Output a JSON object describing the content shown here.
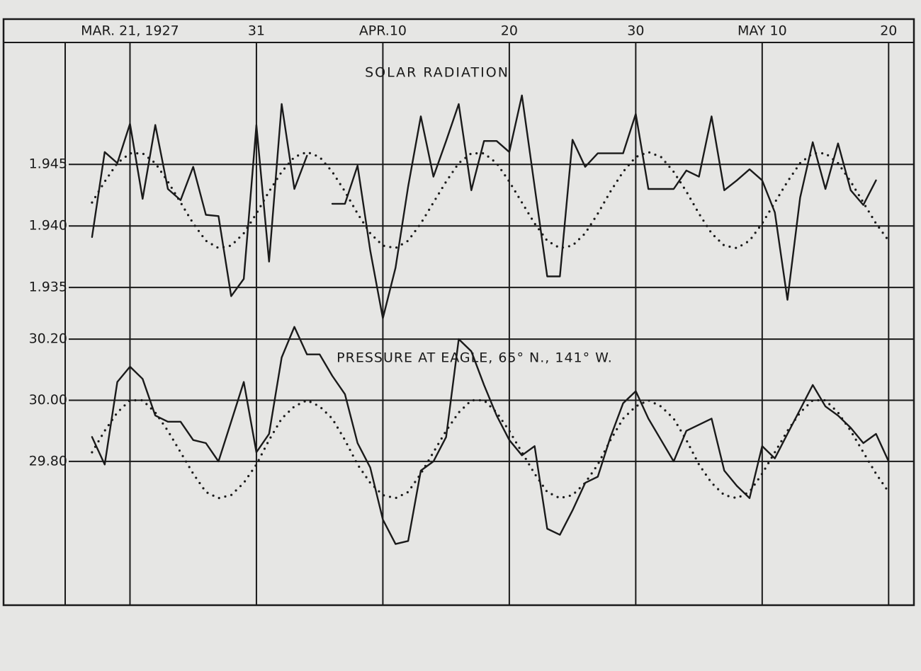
{
  "chart_data": {
    "type": "line",
    "annotations": [
      "SOLAR RADIATION",
      "PRESSURE AT EAGLE, 65° N., 141° W."
    ],
    "x": [
      "1927-03-18",
      "1927-03-19",
      "1927-03-20",
      "1927-03-21",
      "1927-03-22",
      "1927-03-23",
      "1927-03-24",
      "1927-03-25",
      "1927-03-26",
      "1927-03-27",
      "1927-03-28",
      "1927-03-29",
      "1927-03-30",
      "1927-03-31",
      "1927-04-01",
      "1927-04-02",
      "1927-04-03",
      "1927-04-04",
      "1927-04-05",
      "1927-04-06",
      "1927-04-07",
      "1927-04-08",
      "1927-04-09",
      "1927-04-10",
      "1927-04-11",
      "1927-04-12",
      "1927-04-13",
      "1927-04-14",
      "1927-04-15",
      "1927-04-16",
      "1927-04-17",
      "1927-04-18",
      "1927-04-19",
      "1927-04-20",
      "1927-04-21",
      "1927-04-22",
      "1927-04-23",
      "1927-04-24",
      "1927-04-25",
      "1927-04-26",
      "1927-04-27",
      "1927-04-28",
      "1927-04-29",
      "1927-04-30",
      "1927-05-01",
      "1927-05-02",
      "1927-05-03",
      "1927-05-04",
      "1927-05-05",
      "1927-05-06",
      "1927-05-07",
      "1927-05-08",
      "1927-05-09",
      "1927-05-10",
      "1927-05-11",
      "1927-05-12",
      "1927-05-13",
      "1927-05-14",
      "1927-05-15",
      "1927-05-16",
      "1927-05-17",
      "1927-05-18",
      "1927-05-19",
      "1927-05-20"
    ],
    "xlim": [
      "1927-03-11",
      "1927-05-22"
    ],
    "xticks": [
      {
        "value": "1927-03-21",
        "label": "MAR. 21, 1927"
      },
      {
        "value": "1927-03-31",
        "label": "31"
      },
      {
        "value": "1927-04-10",
        "label": "APR.10"
      },
      {
        "value": "1927-04-20",
        "label": "20"
      },
      {
        "value": "1927-04-30",
        "label": "30"
      },
      {
        "value": "1927-05-10",
        "label": "MAY 10"
      },
      {
        "value": "1927-05-20",
        "label": "20"
      }
    ],
    "ylim": [
      1.9092,
      1.9549
    ],
    "yticks": [
      1.935,
      {
        "value": 1.94,
        "label": "1.940"
      },
      1.945
    ],
    "y2lim": [
      29.33,
      31.17
    ],
    "y2ticks": [
      {
        "value": 29.8,
        "label": "29.80"
      },
      {
        "value": 30,
        "label": "30.00"
      },
      {
        "value": 30.2,
        "label": "30.20"
      }
    ],
    "grid": true,
    "series": [
      {
        "color": "#1a1a1a",
        "style": "solid",
        "values": [
          1.9391,
          1.946,
          1.9451,
          1.9483,
          1.9422,
          1.9482,
          1.943,
          1.9421,
          1.9448,
          1.9409,
          1.9408,
          1.9343,
          1.9357,
          1.9482,
          1.9371,
          1.9499,
          1.943,
          1.9457,
          null,
          1.9418,
          1.9418,
          1.9449,
          1.938,
          1.9325,
          1.9366,
          1.9432,
          1.9489,
          1.944,
          1.9469,
          1.9499,
          1.9429,
          1.9469,
          1.9469,
          1.946,
          1.9506,
          1.9432,
          1.9359,
          1.9359,
          1.947,
          1.9448,
          1.9459,
          1.9459,
          1.9459,
          1.9491,
          1.943,
          1.943,
          1.943,
          1.9445,
          1.944,
          1.9489,
          1.9429,
          1.9437,
          1.9446,
          1.9437,
          1.9411,
          1.934,
          1.9423,
          1.9468,
          1.943,
          1.9467,
          1.9429,
          1.9417,
          1.9437,
          null
        ]
      },
      {
        "color": "#1a1a1a",
        "style": "dotted",
        "values": [
          1.9419,
          1.9436,
          1.9451,
          1.9459,
          1.9459,
          1.9451,
          1.9436,
          1.9419,
          1.9402,
          1.9388,
          1.9382,
          1.9384,
          1.9394,
          1.941,
          1.9428,
          1.9444,
          1.9456,
          1.946,
          1.9456,
          1.9444,
          1.9428,
          1.941,
          1.9394,
          1.9384,
          1.9382,
          1.9388,
          1.9402,
          1.9419,
          1.9436,
          1.9451,
          1.9459,
          1.9459,
          1.9451,
          1.9436,
          1.9419,
          1.9402,
          1.9388,
          1.9382,
          1.9384,
          1.9394,
          1.941,
          1.9428,
          1.9444,
          1.9456,
          1.946,
          1.9456,
          1.9444,
          1.9428,
          1.941,
          1.9394,
          1.9384,
          1.9382,
          1.9388,
          1.9402,
          1.9419,
          1.9436,
          1.9451,
          1.9459,
          1.9459,
          1.9451,
          1.9436,
          1.9419,
          1.9402,
          1.9388
        ]
      },
      {
        "color": "#1a1a1a",
        "style": "solid",
        "axis": "y2",
        "values": [
          29.88,
          29.79,
          30.06,
          30.11,
          30.07,
          29.95,
          29.93,
          29.93,
          29.87,
          29.86,
          29.8,
          29.93,
          30.06,
          29.83,
          29.89,
          30.14,
          30.24,
          30.15,
          30.15,
          30.08,
          30.02,
          29.86,
          29.78,
          29.61,
          29.53,
          29.54,
          29.77,
          29.8,
          29.88,
          30.2,
          30.16,
          30.05,
          29.95,
          29.87,
          29.82,
          29.85,
          29.58,
          29.56,
          29.64,
          29.73,
          29.75,
          29.88,
          29.99,
          30.03,
          29.94,
          29.87,
          29.8,
          29.9,
          29.92,
          29.94,
          29.77,
          29.72,
          29.68,
          29.85,
          29.81,
          29.89,
          29.97,
          30.05,
          29.98,
          29.95,
          29.91,
          29.86,
          29.89,
          29.8
        ]
      },
      {
        "color": "#1a1a1a",
        "style": "dotted",
        "axis": "y2",
        "values": [
          29.83,
          29.9,
          29.96,
          30.0,
          30.0,
          29.96,
          29.9,
          29.83,
          29.76,
          29.7,
          29.68,
          29.69,
          29.73,
          29.79,
          29.87,
          29.94,
          29.98,
          30.0,
          29.98,
          29.94,
          29.87,
          29.79,
          29.73,
          29.69,
          29.68,
          29.7,
          29.76,
          29.83,
          29.9,
          29.96,
          30.0,
          30.0,
          29.96,
          29.9,
          29.83,
          29.76,
          29.7,
          29.68,
          29.69,
          29.73,
          29.79,
          29.87,
          29.94,
          29.98,
          30.0,
          29.98,
          29.94,
          29.87,
          29.79,
          29.73,
          29.69,
          29.68,
          29.7,
          29.76,
          29.83,
          29.9,
          29.96,
          30.0,
          30.0,
          29.96,
          29.9,
          29.83,
          29.76,
          29.7
        ]
      }
    ]
  }
}
